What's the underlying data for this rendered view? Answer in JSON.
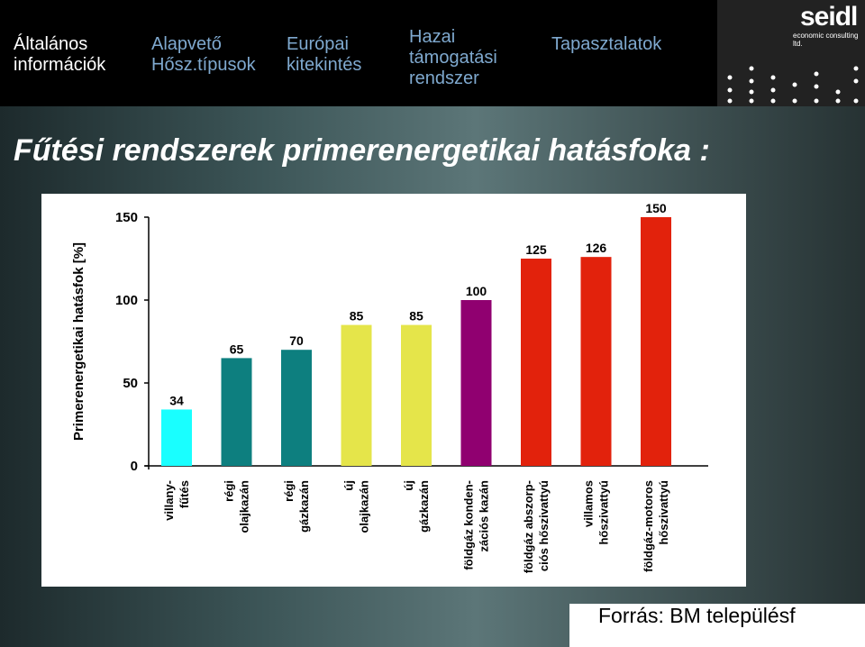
{
  "nav": {
    "items": [
      {
        "line1": "Általános",
        "line2": "információk",
        "line3": ""
      },
      {
        "line1": "Alapvető",
        "line2": "Hősz.típusok",
        "line3": ""
      },
      {
        "line1": "Európai",
        "line2": "kitekintés",
        "line3": ""
      },
      {
        "line1": "Hazai",
        "line2": "támogatási",
        "line3": "rendszer"
      },
      {
        "line1": "Tapasztalatok",
        "line2": "",
        "line3": ""
      }
    ],
    "logo": {
      "word": "seidl",
      "sub": "economic consulting ltd."
    }
  },
  "slide": {
    "title": "Fűtési rendszerek primerenergetikai hatásfoka :",
    "source": "Forrás: BM településf"
  },
  "colors": {
    "background": "#000000",
    "nav_active": "#ffffff",
    "nav_inactive": "#7fa9cf"
  },
  "chart_data": {
    "type": "bar",
    "title": "",
    "xlabel": "",
    "ylabel": "Primerenergetikai hatásfok [%]",
    "ylim": [
      0,
      150
    ],
    "yticks": [
      0,
      50,
      100,
      150
    ],
    "grid": false,
    "categories": [
      [
        "villany-",
        "fűtés"
      ],
      [
        "régi",
        "olajkazán"
      ],
      [
        "régi",
        "gázkazán"
      ],
      [
        "új",
        "olajkazán"
      ],
      [
        "új",
        "gázkazán"
      ],
      [
        "földgáz konden-",
        "zációs kazán"
      ],
      [
        "földgáz abszorp-",
        "ciós hőszivattyú"
      ],
      [
        "villamos",
        "hőszivattyú"
      ],
      [
        "földgáz-motoros",
        "hőszivattyú"
      ]
    ],
    "values": [
      34,
      65,
      70,
      85,
      85,
      100,
      125,
      126,
      150
    ],
    "bar_colors": [
      "#19ffff",
      "#0d7f7f",
      "#0d7f7f",
      "#e5e54a",
      "#e5e54a",
      "#900070",
      "#e2220c",
      "#e2220c",
      "#e2220c"
    ]
  }
}
